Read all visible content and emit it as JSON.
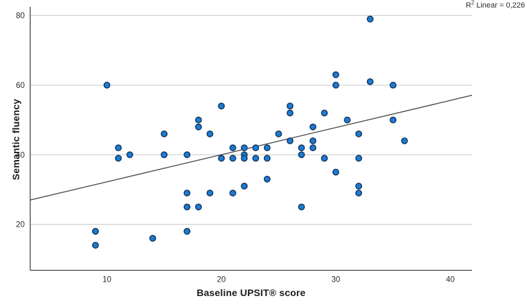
{
  "chart_data": {
    "type": "scatter",
    "title": "",
    "xlabel": "Baseline UPSIT® score",
    "ylabel": "Semantic fluency",
    "x_ticks": [
      10,
      20,
      30,
      40
    ],
    "y_ticks": [
      20,
      40,
      60,
      80
    ],
    "xlim": [
      3.3,
      41.9
    ],
    "ylim": [
      6.8,
      82.5
    ],
    "grid": "horizontal",
    "legend": "none",
    "annotation": {
      "base": "R",
      "sup": "2",
      "rest": " Linear = 0,226"
    },
    "fit_line": {
      "x1": 3.3,
      "y1": 27.0,
      "x2": 41.9,
      "y2": 57.1
    },
    "points": [
      [
        9,
        18
      ],
      [
        9,
        14
      ],
      [
        10,
        60
      ],
      [
        11,
        42
      ],
      [
        11,
        39
      ],
      [
        12,
        40
      ],
      [
        14,
        16
      ],
      [
        15,
        46
      ],
      [
        15,
        40
      ],
      [
        17,
        40
      ],
      [
        17,
        29
      ],
      [
        17,
        25
      ],
      [
        17,
        18
      ],
      [
        18,
        50
      ],
      [
        18,
        48
      ],
      [
        18,
        25
      ],
      [
        19,
        46
      ],
      [
        19,
        29
      ],
      [
        20,
        54
      ],
      [
        20,
        39
      ],
      [
        21,
        42
      ],
      [
        21,
        39
      ],
      [
        21,
        29
      ],
      [
        22,
        42
      ],
      [
        22,
        40
      ],
      [
        22,
        39
      ],
      [
        22,
        31
      ],
      [
        23,
        42
      ],
      [
        23,
        39
      ],
      [
        24,
        42
      ],
      [
        24,
        39
      ],
      [
        24,
        33
      ],
      [
        25,
        46
      ],
      [
        26,
        54
      ],
      [
        26,
        52
      ],
      [
        26,
        44
      ],
      [
        27,
        42
      ],
      [
        27,
        40
      ],
      [
        27,
        25
      ],
      [
        28,
        48
      ],
      [
        28,
        44
      ],
      [
        28,
        42
      ],
      [
        29,
        52
      ],
      [
        29,
        39
      ],
      [
        30,
        63
      ],
      [
        30,
        60
      ],
      [
        30,
        35
      ],
      [
        31,
        50
      ],
      [
        32,
        46
      ],
      [
        32,
        39
      ],
      [
        32,
        31
      ],
      [
        32,
        29
      ],
      [
        33,
        79
      ],
      [
        33,
        61
      ],
      [
        35,
        60
      ],
      [
        35,
        50
      ],
      [
        36,
        44
      ]
    ],
    "colors": {
      "point_fill": "#1b7cd6",
      "point_stroke": "#16385e",
      "grid": "#c8c8c8",
      "axis": "#404040",
      "fit_line": "#3c3c3c",
      "text": "#2b2b2b"
    }
  }
}
